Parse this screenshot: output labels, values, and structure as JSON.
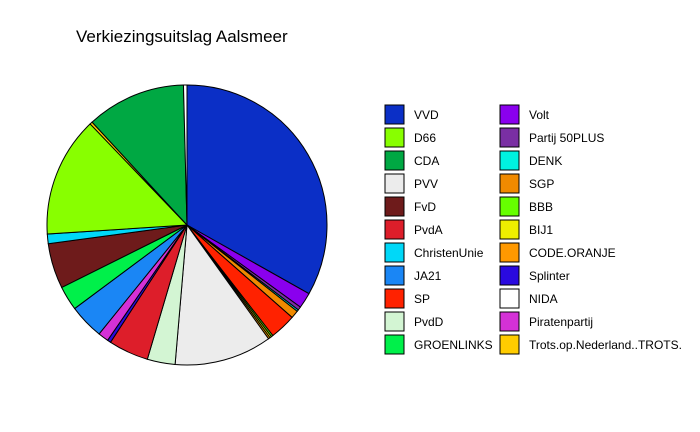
{
  "chart_data": {
    "type": "pie",
    "title": "Verkiezingsuitslag Aalsmeer",
    "legend_position": "right",
    "slices": [
      {
        "label": "VVD",
        "value": 33.0,
        "color": "#0b2fc6"
      },
      {
        "label": "Volt",
        "value": 1.8,
        "color": "#8a00ee"
      },
      {
        "label": "Partij 50PLUS",
        "value": 0.4,
        "color": "#7a2fa3"
      },
      {
        "label": "DENK",
        "value": 0.2,
        "color": "#00f2e0"
      },
      {
        "label": "SGP",
        "value": 0.9,
        "color": "#f08a00"
      },
      {
        "label": "SP",
        "value": 3.0,
        "color": "#ff2200"
      },
      {
        "label": "BBB",
        "value": 0.2,
        "color": "#66ff00"
      },
      {
        "label": "BIJ1",
        "value": 0.2,
        "color": "#eeee00"
      },
      {
        "label": "CODE.ORANJE",
        "value": 0.2,
        "color": "#ff9900"
      },
      {
        "label": "PVV",
        "value": 11.2,
        "color": "#ececec"
      },
      {
        "label": "PvdD",
        "value": 3.2,
        "color": "#d3f5d3"
      },
      {
        "label": "PvdA",
        "value": 4.6,
        "color": "#dd1e2a"
      },
      {
        "label": "Splinter",
        "value": 0.4,
        "color": "#2a0adf"
      },
      {
        "label": "Piratenpartij",
        "value": 1.2,
        "color": "#d431d6"
      },
      {
        "label": "JA21",
        "value": 4.0,
        "color": "#1a86f5"
      },
      {
        "label": "GROENLINKS",
        "value": 2.8,
        "color": "#00f04a"
      },
      {
        "label": "FvD",
        "value": 5.2,
        "color": "#6e1b1b"
      },
      {
        "label": "ChristenUnie",
        "value": 1.1,
        "color": "#00d8f8"
      },
      {
        "label": "D66",
        "value": 13.8,
        "color": "#88ff00"
      },
      {
        "label": "Trots.op.Nederland..TROTS.",
        "value": 0.3,
        "color": "#ffcc00"
      },
      {
        "label": "CDA",
        "value": 11.4,
        "color": "#00a843"
      },
      {
        "label": "NIDA",
        "value": 0.4,
        "color": "#ffffff"
      }
    ],
    "legend_columns": [
      [
        "VVD",
        "D66",
        "CDA",
        "PVV",
        "FvD",
        "PvdA",
        "ChristenUnie",
        "JA21",
        "SP",
        "PvdD",
        "GROENLINKS"
      ],
      [
        "Volt",
        "Partij 50PLUS",
        "DENK",
        "SGP",
        "BBB",
        "BIJ1",
        "CODE.ORANJE",
        "Splinter",
        "NIDA",
        "Piratenpartij",
        "Trots.op.Nederland..TROTS."
      ]
    ]
  }
}
